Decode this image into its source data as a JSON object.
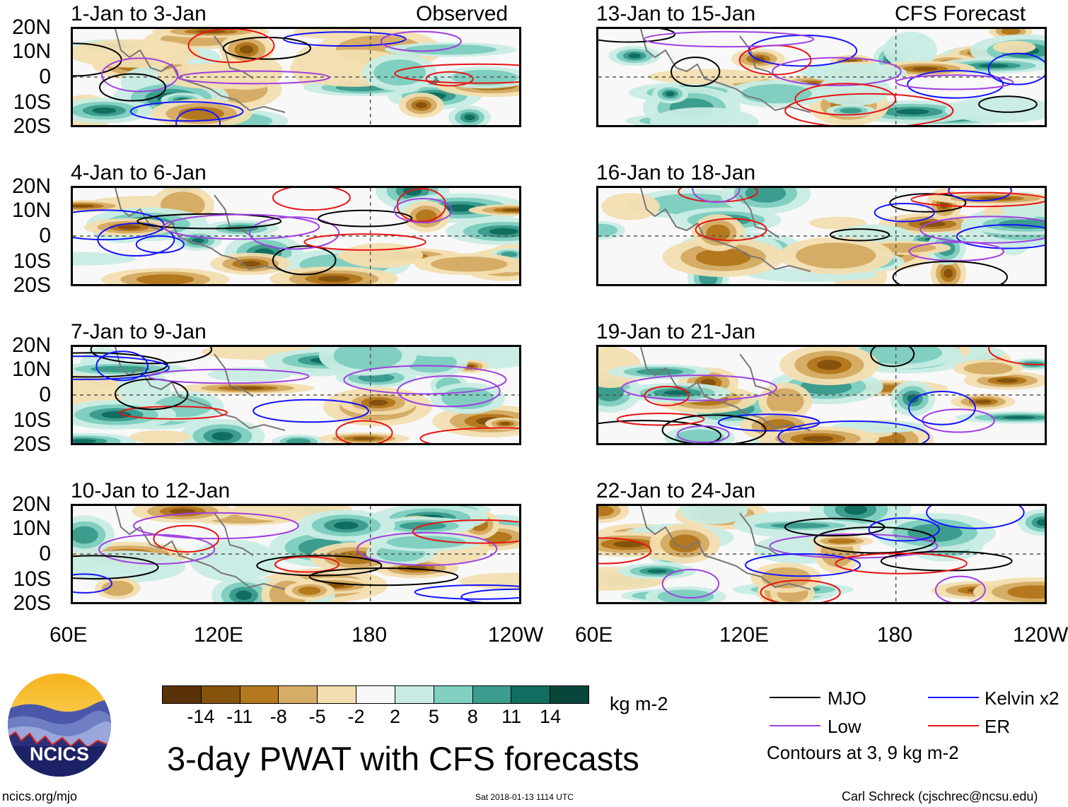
{
  "colors": {
    "mjo": "#000000",
    "kelvin": "#1414ff",
    "low": "#a040e0",
    "er": "#e81414",
    "scale": [
      "#5a3207",
      "#86530d",
      "#b4781e",
      "#d6ad66",
      "#f2deb0",
      "#f8f8f8",
      "#c8ece4",
      "#80cfc0",
      "#3c9d8e",
      "#0f6e60",
      "#08453b"
    ]
  },
  "panels": [
    {
      "title": "1-Jan to 3-Jan",
      "tag": "Observed",
      "column": "observed"
    },
    {
      "title": "4-Jan to 6-Jan",
      "tag": "",
      "column": "observed"
    },
    {
      "title": "7-Jan to 9-Jan",
      "tag": "",
      "column": "observed"
    },
    {
      "title": "10-Jan to 12-Jan",
      "tag": "",
      "column": "observed"
    },
    {
      "title": "13-Jan to 15-Jan",
      "tag": "CFS Forecast",
      "column": "forecast"
    },
    {
      "title": "16-Jan to 18-Jan",
      "tag": "",
      "column": "forecast"
    },
    {
      "title": "19-Jan to 21-Jan",
      "tag": "",
      "column": "forecast"
    },
    {
      "title": "22-Jan to 24-Jan",
      "tag": "",
      "column": "forecast"
    }
  ],
  "lat_labels": [
    "20N",
    "10N",
    "0",
    "10S",
    "20S"
  ],
  "lon_labels": [
    "60E",
    "120E",
    "180",
    "120W"
  ],
  "colorbar": {
    "ticks": [
      "-14",
      "-11",
      "-8",
      "-5",
      "-2",
      "2",
      "5",
      "8",
      "11",
      "14"
    ],
    "units": "kg m-2"
  },
  "legend": {
    "items": [
      {
        "label": "MJO",
        "color_key": "mjo"
      },
      {
        "label": "Kelvin x2",
        "color_key": "kelvin"
      },
      {
        "label": "Low",
        "color_key": "low"
      },
      {
        "label": "ER",
        "color_key": "er"
      }
    ],
    "note": "Contours at 3, 9 kg m-2"
  },
  "logo_text": "NCICS",
  "main_title": "3-day PWAT with CFS forecasts",
  "footer": {
    "left": "ncics.org/mjo",
    "center": "Sat 2018-01-13 1114 UTC",
    "right": "Carl Schreck (cjschrec@ncsu.edu)"
  }
}
